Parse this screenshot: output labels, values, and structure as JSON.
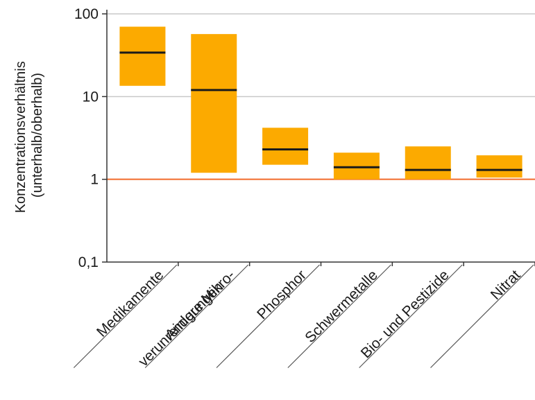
{
  "chart_data": {
    "type": "box",
    "title": "",
    "ylabel_lines": [
      "Konzentrationsverhältnis",
      "(unterhalb/oberhalb)"
    ],
    "xlabel": "",
    "yscale": "log",
    "ylim": [
      0.1,
      100
    ],
    "yticks": [
      {
        "value": 100,
        "label": "100"
      },
      {
        "value": 10,
        "label": "10"
      },
      {
        "value": 1,
        "label": "1"
      },
      {
        "value": 0.1,
        "label": "0,1"
      }
    ],
    "reference_line": {
      "value": 1,
      "color": "#f26b2b"
    },
    "colors": {
      "box": "#fcaa00",
      "median": "#1a1a1a",
      "grid": "#c8c8c8",
      "axis": "#333333"
    },
    "categories": [
      {
        "label_lines": [
          "Medikamente"
        ],
        "low": 13.5,
        "high": 70,
        "median": 34
      },
      {
        "label_lines": [
          "Andere Mikro-",
          "verunreinigungen"
        ],
        "low": 1.2,
        "high": 57,
        "median": 12
      },
      {
        "label_lines": [
          "Phosphor"
        ],
        "low": 1.5,
        "high": 4.2,
        "median": 2.3
      },
      {
        "label_lines": [
          "Schwermetalle"
        ],
        "low": 1.0,
        "high": 2.1,
        "median": 1.4
      },
      {
        "label_lines": [
          "Bio- und Pestizide"
        ],
        "low": 1.0,
        "high": 2.5,
        "median": 1.3
      },
      {
        "label_lines": [
          "Nitrat"
        ],
        "low": 1.05,
        "high": 1.95,
        "median": 1.3
      }
    ]
  }
}
